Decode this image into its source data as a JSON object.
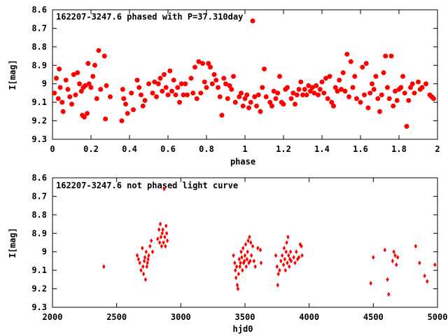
{
  "chart_data": [
    {
      "type": "scatter",
      "title": "162207-3247.6 phased with P=37.310day",
      "xlabel": "phase",
      "ylabel": "I[mag]",
      "xlim": [
        0,
        2
      ],
      "ylim": [
        8.6,
        9.3
      ],
      "y_inverted": true,
      "xticks": [
        "0",
        "0.2",
        "0.4",
        "0.6",
        "0.8",
        "1",
        "1.2",
        "1.4",
        "1.6",
        "1.8",
        "2"
      ],
      "yticks": [
        "8.6",
        "8.7",
        "8.8",
        "8.9",
        "9",
        "9.1",
        "9.2",
        "9.3"
      ],
      "marker_color": "#ff0000",
      "marker": "star",
      "points": [
        [
          0.01,
          9.05
        ],
        [
          0.02,
          8.97
        ],
        [
          0.03,
          9.08
        ],
        [
          0.035,
          8.92
        ],
        [
          0.04,
          9.02
        ],
        [
          0.05,
          9.1
        ],
        [
          0.055,
          9.15
        ],
        [
          0.07,
          8.98
        ],
        [
          0.08,
          9.03
        ],
        [
          0.09,
          9.07
        ],
        [
          0.1,
          9.11
        ],
        [
          0.11,
          8.95
        ],
        [
          0.12,
          9.06
        ],
        [
          0.13,
          8.94
        ],
        [
          0.14,
          9.0
        ],
        [
          0.15,
          9.04
        ],
        [
          0.155,
          9.17
        ],
        [
          0.16,
          9.02
        ],
        [
          0.165,
          9.18
        ],
        [
          0.17,
          9.01
        ],
        [
          0.18,
          9.16
        ],
        [
          0.185,
          8.89
        ],
        [
          0.19,
          9.0
        ],
        [
          0.2,
          9.02
        ],
        [
          0.21,
          8.96
        ],
        [
          0.22,
          8.9
        ],
        [
          0.23,
          9.08
        ],
        [
          0.24,
          8.82
        ],
        [
          0.25,
          9.03
        ],
        [
          0.27,
          8.85
        ],
        [
          0.275,
          9.19
        ],
        [
          0.28,
          9.01
        ],
        [
          0.3,
          9.07
        ],
        [
          0.36,
          9.2
        ],
        [
          0.365,
          9.03
        ],
        [
          0.37,
          9.08
        ],
        [
          0.38,
          9.11
        ],
        [
          0.39,
          9.16
        ],
        [
          0.41,
          9.05
        ],
        [
          0.42,
          9.14
        ],
        [
          0.44,
          8.98
        ],
        [
          0.45,
          9.02
        ],
        [
          0.46,
          9.06
        ],
        [
          0.47,
          9.12
        ],
        [
          0.48,
          9.09
        ],
        [
          0.5,
          9.0
        ],
        [
          0.52,
          9.05
        ],
        [
          0.53,
          8.99
        ],
        [
          0.54,
          9.07
        ],
        [
          0.55,
          9.0
        ],
        [
          0.56,
          8.97
        ],
        [
          0.57,
          9.04
        ],
        [
          0.58,
          8.95
        ],
        [
          0.59,
          9.02
        ],
        [
          0.6,
          9.06
        ],
        [
          0.61,
          8.93
        ],
        [
          0.62,
          9.04
        ],
        [
          0.63,
          8.98
        ],
        [
          0.64,
          9.06
        ],
        [
          0.65,
          9.02
        ],
        [
          0.66,
          9.1
        ],
        [
          0.67,
          9.0
        ],
        [
          0.68,
          9.06
        ],
        [
          0.69,
          9.0
        ],
        [
          0.7,
          9.06
        ],
        [
          0.72,
          8.97
        ],
        [
          0.73,
          9.05
        ],
        [
          0.74,
          8.91
        ],
        [
          0.75,
          9.08
        ],
        [
          0.76,
          8.88
        ],
        [
          0.77,
          9.05
        ],
        [
          0.78,
          8.89
        ],
        [
          0.79,
          8.99
        ],
        [
          0.8,
          9.02
        ],
        [
          0.81,
          8.89
        ],
        [
          0.82,
          8.91
        ],
        [
          0.83,
          9.0
        ],
        [
          0.84,
          8.95
        ],
        [
          0.85,
          8.98
        ],
        [
          0.86,
          9.02
        ],
        [
          0.87,
          9.07
        ],
        [
          0.88,
          9.17
        ],
        [
          0.89,
          8.97
        ],
        [
          0.9,
          9.0
        ],
        [
          0.91,
          9.08
        ],
        [
          0.92,
          9.01
        ],
        [
          0.93,
          9.03
        ],
        [
          0.94,
          8.96
        ],
        [
          0.95,
          9.1
        ],
        [
          0.97,
          9.07
        ],
        [
          0.98,
          9.05
        ],
        [
          0.99,
          9.12
        ],
        [
          1.0,
          9.08
        ],
        [
          1.01,
          9.06
        ],
        [
          1.02,
          9.13
        ],
        [
          1.03,
          9.1
        ],
        [
          1.04,
          8.66
        ],
        [
          1.05,
          9.07
        ],
        [
          1.06,
          9.12
        ],
        [
          1.07,
          9.06
        ],
        [
          1.08,
          9.15
        ],
        [
          1.09,
          9.02
        ],
        [
          1.1,
          8.92
        ],
        [
          1.11,
          9.07
        ],
        [
          1.13,
          9.1
        ],
        [
          1.14,
          9.12
        ],
        [
          1.15,
          9.04
        ],
        [
          1.16,
          9.08
        ],
        [
          1.17,
          9.05
        ],
        [
          1.18,
          8.96
        ],
        [
          1.19,
          9.1
        ],
        [
          1.2,
          9.11
        ],
        [
          1.21,
          9.03
        ],
        [
          1.22,
          9.02
        ],
        [
          1.24,
          9.08
        ],
        [
          1.25,
          9.05
        ],
        [
          1.26,
          9.11
        ],
        [
          1.27,
          9.06
        ],
        [
          1.28,
          9.03
        ],
        [
          1.29,
          8.99
        ],
        [
          1.3,
          9.06
        ],
        [
          1.31,
          9.03
        ],
        [
          1.32,
          9.06
        ],
        [
          1.33,
          9.01
        ],
        [
          1.34,
          9.04
        ],
        [
          1.35,
          9.02
        ],
        [
          1.36,
          9.05
        ],
        [
          1.37,
          9.01
        ],
        [
          1.38,
          9.06
        ],
        [
          1.39,
          9.03
        ],
        [
          1.4,
          8.99
        ],
        [
          1.41,
          9.05
        ],
        [
          1.42,
          8.97
        ],
        [
          1.43,
          9.08
        ],
        [
          1.44,
          8.96
        ],
        [
          1.45,
          9.1
        ],
        [
          1.46,
          9.12
        ],
        [
          1.47,
          9.02
        ],
        [
          1.48,
          9.04
        ],
        [
          1.49,
          8.98
        ],
        [
          1.5,
          9.03
        ],
        [
          1.51,
          8.94
        ],
        [
          1.52,
          9.04
        ],
        [
          1.53,
          8.84
        ],
        [
          1.54,
          9.07
        ],
        [
          1.55,
          8.88
        ],
        [
          1.56,
          9.02
        ],
        [
          1.57,
          8.96
        ],
        [
          1.58,
          9.08
        ],
        [
          1.6,
          9.1
        ],
        [
          1.61,
          8.91
        ],
        [
          1.62,
          9.06
        ],
        [
          1.63,
          8.89
        ],
        [
          1.64,
          9.13
        ],
        [
          1.65,
          9.05
        ],
        [
          1.66,
          9.0
        ],
        [
          1.67,
          9.03
        ],
        [
          1.68,
          8.96
        ],
        [
          1.69,
          9.08
        ],
        [
          1.7,
          9.15
        ],
        [
          1.71,
          9.06
        ],
        [
          1.72,
          8.94
        ],
        [
          1.73,
          8.85
        ],
        [
          1.74,
          9.02
        ],
        [
          1.75,
          9.08
        ],
        [
          1.76,
          8.85
        ],
        [
          1.77,
          9.12
        ],
        [
          1.78,
          9.04
        ],
        [
          1.79,
          9.09
        ],
        [
          1.8,
          9.03
        ],
        [
          1.81,
          9.02
        ],
        [
          1.82,
          8.96
        ],
        [
          1.83,
          9.05
        ],
        [
          1.84,
          9.23
        ],
        [
          1.85,
          9.09
        ],
        [
          1.86,
          9.02
        ],
        [
          1.87,
          9.0
        ],
        [
          1.88,
          9.05
        ],
        [
          1.9,
          8.99
        ],
        [
          1.91,
          9.03
        ],
        [
          1.92,
          9.02
        ],
        [
          1.94,
          9.0
        ],
        [
          1.96,
          9.06
        ],
        [
          1.97,
          9.07
        ],
        [
          1.98,
          9.08
        ]
      ]
    },
    {
      "type": "scatter",
      "title": "162207-3247.6 not phased light curve",
      "xlabel": "hjd0",
      "ylabel": "I[mag]",
      "xlim": [
        2000,
        5000
      ],
      "ylim": [
        8.6,
        9.3
      ],
      "y_inverted": true,
      "xticks": [
        "2000",
        "2500",
        "3000",
        "3500",
        "4000",
        "4500",
        "5000"
      ],
      "yticks": [
        "8.6",
        "8.7",
        "8.8",
        "8.9",
        "9",
        "9.1",
        "9.2",
        "9.3"
      ],
      "marker_color": "#ff0000",
      "marker": "diamond",
      "points": [
        [
          2400,
          9.08
        ],
        [
          2660,
          9.02
        ],
        [
          2670,
          9.04
        ],
        [
          2680,
          9.06
        ],
        [
          2690,
          9.1
        ],
        [
          2700,
          8.98
        ],
        [
          2705,
          9.08
        ],
        [
          2710,
          9.12
        ],
        [
          2715,
          9.05
        ],
        [
          2720,
          9.03
        ],
        [
          2725,
          9.15
        ],
        [
          2730,
          9.0
        ],
        [
          2735,
          9.08
        ],
        [
          2740,
          9.06
        ],
        [
          2745,
          9.04
        ],
        [
          2750,
          9.02
        ],
        [
          2760,
          8.97
        ],
        [
          2770,
          8.94
        ],
        [
          2780,
          9.0
        ],
        [
          2820,
          8.93
        ],
        [
          2830,
          8.88
        ],
        [
          2835,
          8.95
        ],
        [
          2840,
          8.85
        ],
        [
          2845,
          8.92
        ],
        [
          2850,
          8.97
        ],
        [
          2855,
          8.9
        ],
        [
          2860,
          8.88
        ],
        [
          2865,
          8.95
        ],
        [
          2870,
          8.66
        ],
        [
          2875,
          8.92
        ],
        [
          2880,
          8.97
        ],
        [
          2885,
          8.86
        ],
        [
          2890,
          8.9
        ],
        [
          2895,
          8.94
        ],
        [
          3410,
          9.02
        ],
        [
          3420,
          9.06
        ],
        [
          3425,
          9.1
        ],
        [
          3430,
          9.14
        ],
        [
          3435,
          9.08
        ],
        [
          3440,
          9.18
        ],
        [
          3445,
          9.2
        ],
        [
          3450,
          9.12
        ],
        [
          3455,
          9.04
        ],
        [
          3460,
          9.08
        ],
        [
          3465,
          9.06
        ],
        [
          3470,
          9.0
        ],
        [
          3475,
          9.03
        ],
        [
          3480,
          9.1
        ],
        [
          3485,
          8.98
        ],
        [
          3490,
          9.06
        ],
        [
          3495,
          9.05
        ],
        [
          3500,
          9.02
        ],
        [
          3505,
          8.96
        ],
        [
          3510,
          9.08
        ],
        [
          3515,
          9.04
        ],
        [
          3520,
          9.0
        ],
        [
          3525,
          8.94
        ],
        [
          3530,
          9.06
        ],
        [
          3535,
          8.92
        ],
        [
          3540,
          9.05
        ],
        [
          3545,
          8.95
        ],
        [
          3550,
          9.02
        ],
        [
          3560,
          8.97
        ],
        [
          3570,
          9.05
        ],
        [
          3580,
          9.08
        ],
        [
          3600,
          8.98
        ],
        [
          3620,
          8.99
        ],
        [
          3625,
          9.06
        ],
        [
          3740,
          9.02
        ],
        [
          3750,
          9.08
        ],
        [
          3755,
          9.18
        ],
        [
          3760,
          9.12
        ],
        [
          3770,
          9.1
        ],
        [
          3780,
          9.05
        ],
        [
          3790,
          9.02
        ],
        [
          3800,
          9.07
        ],
        [
          3805,
          8.98
        ],
        [
          3810,
          9.04
        ],
        [
          3815,
          9.1
        ],
        [
          3820,
          9.0
        ],
        [
          3825,
          8.95
        ],
        [
          3830,
          9.06
        ],
        [
          3835,
          8.92
        ],
        [
          3840,
          9.02
        ],
        [
          3845,
          9.08
        ],
        [
          3850,
          9.04
        ],
        [
          3855,
          9.0
        ],
        [
          3860,
          9.05
        ],
        [
          3880,
          9.03
        ],
        [
          3890,
          9.06
        ],
        [
          3900,
          9.0
        ],
        [
          3910,
          9.04
        ],
        [
          3920,
          9.03
        ],
        [
          3930,
          8.96
        ],
        [
          3940,
          8.97
        ],
        [
          3945,
          9.02
        ],
        [
          4480,
          9.17
        ],
        [
          4500,
          9.03
        ],
        [
          4590,
          8.99
        ],
        [
          4610,
          9.15
        ],
        [
          4620,
          9.23
        ],
        [
          4650,
          9.05
        ],
        [
          4660,
          9.0
        ],
        [
          4670,
          9.02
        ],
        [
          4680,
          9.07
        ],
        [
          4690,
          9.03
        ],
        [
          4830,
          8.97
        ],
        [
          4860,
          9.06
        ],
        [
          4900,
          9.13
        ],
        [
          4920,
          9.16
        ],
        [
          4980,
          9.07
        ]
      ]
    }
  ]
}
